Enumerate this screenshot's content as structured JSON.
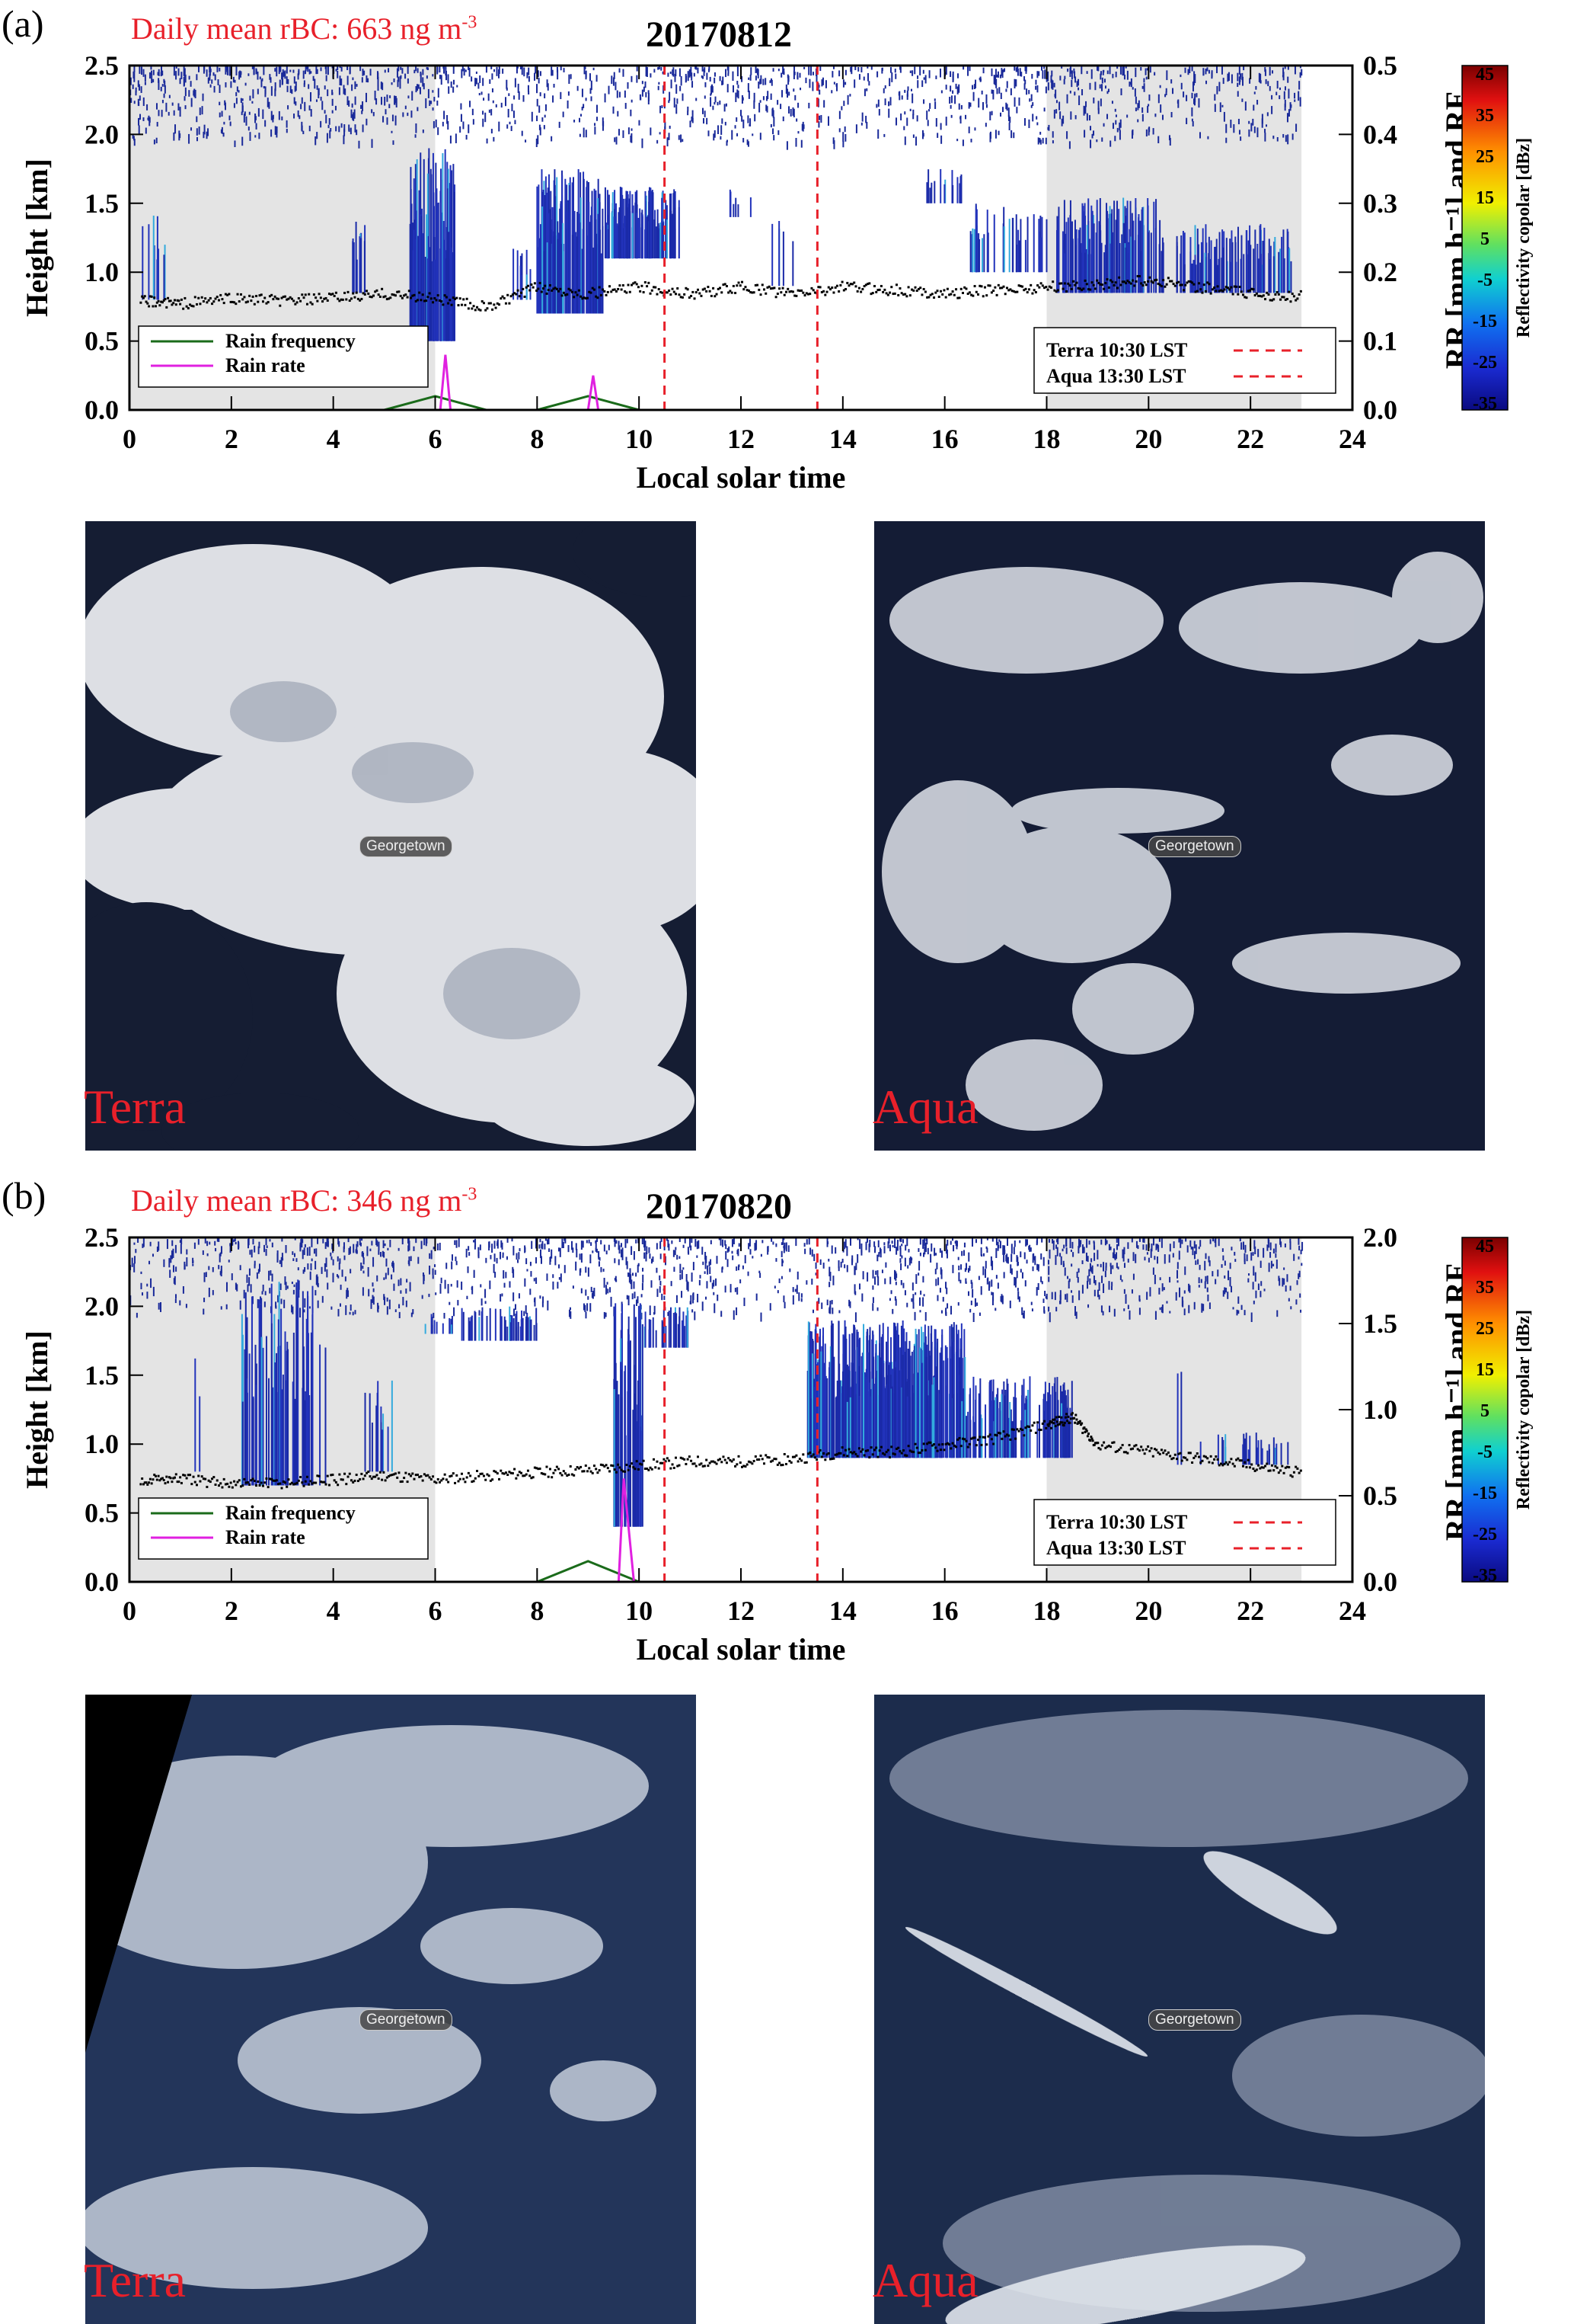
{
  "chart_data": [
    {
      "type": "line",
      "panel": "(a)",
      "annotation": "Daily mean rBC: 663 ng m",
      "annotation_exp": "-3",
      "title": "20170812",
      "xlabel": "Local solar time",
      "ylabel": "Height [km]",
      "y2label": "RR [mm h⁻¹] and RF",
      "xlim": [
        0,
        24
      ],
      "ylim": [
        0,
        2.5
      ],
      "y2lim": [
        0,
        0.5
      ],
      "xticks": [
        "0",
        "2",
        "4",
        "6",
        "8",
        "10",
        "12",
        "14",
        "16",
        "18",
        "20",
        "22",
        "24"
      ],
      "yticks": [
        "0.0",
        "0.5",
        "1.0",
        "1.5",
        "2.0",
        "2.5"
      ],
      "y2ticks": [
        "0.0",
        "0.1",
        "0.2",
        "0.3",
        "0.4",
        "0.5"
      ],
      "nighttime_shading": [
        [
          0,
          6
        ],
        [
          18,
          23
        ]
      ],
      "satellite_overpass": [
        {
          "name": "Terra 10:30 LST",
          "x": 10.5
        },
        {
          "name": "Aqua 13:30 LST",
          "x": 13.5
        }
      ],
      "series": [
        {
          "name": "Rain frequency",
          "color": "#1a6b1a",
          "x": [
            0,
            5,
            6,
            7,
            8,
            9,
            10,
            23
          ],
          "y": [
            0,
            0,
            0.02,
            0,
            0,
            0.02,
            0,
            0
          ]
        },
        {
          "name": "Rain rate",
          "color": "#e020e0",
          "x": [
            0,
            6.1,
            6.2,
            6.3,
            9,
            9.1,
            9.2,
            23
          ],
          "y": [
            0,
            0,
            0.08,
            0,
            0,
            0.05,
            0,
            0
          ]
        }
      ],
      "cloud_base_km": [
        [
          0.2,
          0.8
        ],
        [
          1,
          0.78
        ],
        [
          2,
          0.82
        ],
        [
          3,
          0.8
        ],
        [
          4,
          0.82
        ],
        [
          5,
          0.85
        ],
        [
          6,
          0.82
        ],
        [
          7,
          0.75
        ],
        [
          8,
          0.9
        ],
        [
          9,
          0.85
        ],
        [
          10,
          0.9
        ],
        [
          11,
          0.85
        ],
        [
          12,
          0.9
        ],
        [
          13,
          0.85
        ],
        [
          14,
          0.9
        ],
        [
          15,
          0.88
        ],
        [
          16,
          0.85
        ],
        [
          17,
          0.88
        ],
        [
          18,
          0.9
        ],
        [
          19,
          0.92
        ],
        [
          20,
          0.95
        ],
        [
          21,
          0.9
        ],
        [
          22,
          0.85
        ],
        [
          23,
          0.83
        ]
      ],
      "colorbar": {
        "label": "Reflectivity copolar [dBz]",
        "ticks": [
          "45",
          "35",
          "25",
          "15",
          "5",
          "-5",
          "-15",
          "-25",
          "-35"
        ]
      },
      "images": [
        {
          "label": "Terra",
          "town": "Georgetown"
        },
        {
          "label": "Aqua",
          "town": "Georgetown"
        }
      ]
    },
    {
      "type": "line",
      "panel": "(b)",
      "annotation": "Daily mean rBC: 346 ng m",
      "annotation_exp": "-3",
      "title": "20170820",
      "xlabel": "Local solar time",
      "ylabel": "Height [km]",
      "y2label": "RR [mm h⁻¹] and RF",
      "xlim": [
        0,
        24
      ],
      "ylim": [
        0,
        2.5
      ],
      "y2lim": [
        0,
        2.0
      ],
      "xticks": [
        "0",
        "2",
        "4",
        "6",
        "8",
        "10",
        "12",
        "14",
        "16",
        "18",
        "20",
        "22",
        "24"
      ],
      "yticks": [
        "0.0",
        "0.5",
        "1.0",
        "1.5",
        "2.0",
        "2.5"
      ],
      "y2ticks": [
        "0.0",
        "0.5",
        "1.0",
        "1.5",
        "2.0"
      ],
      "nighttime_shading": [
        [
          0,
          6
        ],
        [
          18,
          23
        ]
      ],
      "satellite_overpass": [
        {
          "name": "Terra 10:30 LST",
          "x": 10.5
        },
        {
          "name": "Aqua 13:30 LST",
          "x": 13.5
        }
      ],
      "series": [
        {
          "name": "Rain frequency",
          "color": "#1a6b1a",
          "x": [
            0,
            8,
            9,
            10,
            23
          ],
          "y": [
            0,
            0,
            0.12,
            0,
            0
          ]
        },
        {
          "name": "Rain rate",
          "color": "#e020e0",
          "x": [
            0,
            9.6,
            9.7,
            9.8,
            9.9,
            23
          ],
          "y": [
            0,
            0,
            0.6,
            0.3,
            0,
            0
          ]
        }
      ],
      "cloud_base_km": [
        [
          0.2,
          0.75
        ],
        [
          1,
          0.75
        ],
        [
          2,
          0.72
        ],
        [
          3,
          0.72
        ],
        [
          4,
          0.75
        ],
        [
          5,
          0.78
        ],
        [
          6,
          0.75
        ],
        [
          7,
          0.78
        ],
        [
          8,
          0.8
        ],
        [
          9,
          0.82
        ],
        [
          10,
          0.85
        ],
        [
          11,
          0.88
        ],
        [
          12,
          0.88
        ],
        [
          13,
          0.9
        ],
        [
          14,
          0.95
        ],
        [
          15,
          0.95
        ],
        [
          16,
          1.0
        ],
        [
          17,
          1.05
        ],
        [
          18,
          1.15
        ],
        [
          18.5,
          1.2
        ],
        [
          19,
          1.0
        ],
        [
          20,
          0.95
        ],
        [
          21,
          0.9
        ],
        [
          22,
          0.85
        ],
        [
          23,
          0.8
        ]
      ],
      "colorbar": {
        "label": "Reflectivity copolar [dBz]",
        "ticks": [
          "45",
          "35",
          "25",
          "15",
          "5",
          "-5",
          "-15",
          "-25",
          "-35"
        ]
      },
      "images": [
        {
          "label": "Terra",
          "town": "Georgetown"
        },
        {
          "label": "Aqua",
          "town": "Georgetown"
        }
      ]
    }
  ],
  "colors": {
    "annotation_red": "#e8202a",
    "overpass_line": "#e8202a",
    "radar_blue": "#1a2aa8",
    "night_shade": "#e4e4e4"
  }
}
